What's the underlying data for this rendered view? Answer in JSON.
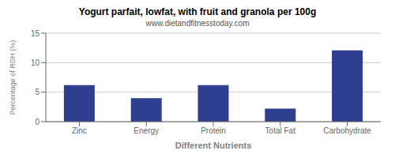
{
  "chart_data": {
    "type": "bar",
    "title": "Yogurt parfait, lowfat, with fruit and granola per 100g",
    "subtitle": "www.dietandfitnesstoday.com",
    "xlabel": "Different Nutrients",
    "ylabel": "Percentage of RDH (%)",
    "categories": [
      "Zinc",
      "Energy",
      "Protein",
      "Total Fat",
      "Carbohydrate"
    ],
    "values": [
      6.2,
      4.0,
      6.2,
      2.2,
      12.1
    ],
    "color": "#2e3f8f",
    "ylim": [
      0,
      15
    ],
    "yticks": [
      0,
      5,
      10,
      15
    ],
    "grid": true
  }
}
